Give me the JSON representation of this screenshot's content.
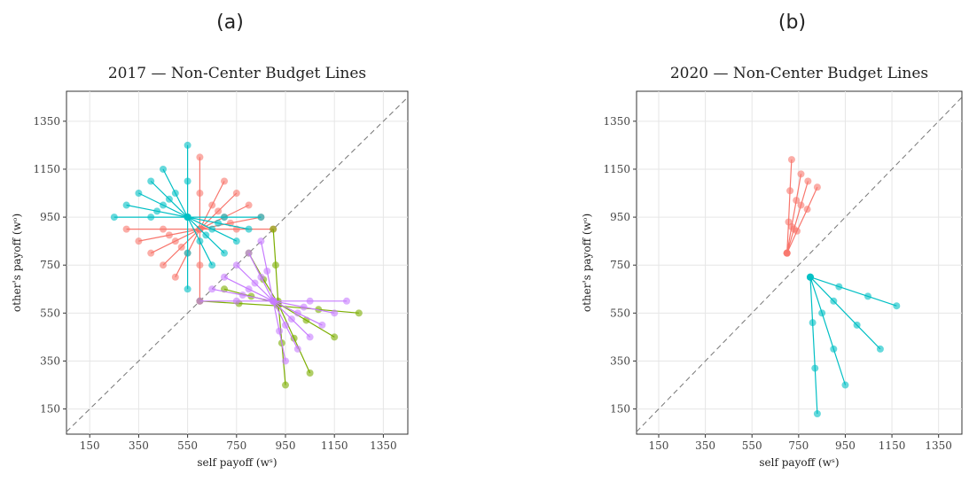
{
  "chart_data": [
    {
      "type": "line",
      "panel_label": "(a)",
      "title": "2017 — Non-Center Budget Lines",
      "x_label": "self payoff (wˢ)",
      "y_label": "other's payoff (wᵒ)",
      "xlim": [
        55,
        1450
      ],
      "ylim": [
        45,
        1475
      ],
      "xticks": [
        150,
        350,
        550,
        750,
        950,
        1150,
        1350
      ],
      "yticks": [
        150,
        350,
        550,
        750,
        950,
        1150,
        1350
      ],
      "grid": true,
      "diagonal": true,
      "series": [
        {
          "color": "#F8766D",
          "x": [
            300,
            450,
            600,
            750,
            900,
            null,
            350,
            475,
            600,
            725,
            850,
            null,
            400,
            500,
            600,
            700,
            800,
            null,
            500,
            550,
            600,
            650,
            700,
            null,
            600,
            600,
            600,
            600,
            600,
            null,
            450,
            525,
            600,
            675,
            750
          ],
          "y": [
            900,
            900,
            900,
            900,
            900,
            null,
            850,
            875,
            900,
            925,
            950,
            null,
            800,
            850,
            900,
            950,
            1000,
            null,
            700,
            800,
            900,
            1000,
            1100,
            null,
            600,
            750,
            900,
            1050,
            1200,
            null,
            750,
            825,
            900,
            975,
            1050
          ]
        },
        {
          "color": "#7CAE00",
          "x": [
            900,
            910,
            920,
            935,
            950,
            null,
            600,
            760,
            920,
            1085,
            1250,
            null,
            700,
            810,
            920,
            1035,
            1150,
            null,
            800,
            860,
            920,
            985,
            1050
          ],
          "y": [
            900,
            750,
            600,
            425,
            250,
            null,
            600,
            590,
            580,
            565,
            550,
            null,
            650,
            620,
            590,
            520,
            450,
            null,
            800,
            690,
            590,
            445,
            300
          ]
        },
        {
          "color": "#00BFC4",
          "x": [
            250,
            400,
            550,
            700,
            850,
            null,
            300,
            425,
            550,
            675,
            800,
            null,
            350,
            450,
            550,
            650,
            750,
            null,
            450,
            500,
            550,
            600,
            650,
            null,
            550,
            550,
            550,
            550,
            550,
            null,
            400,
            475,
            550,
            625,
            700
          ],
          "y": [
            950,
            950,
            950,
            950,
            950,
            null,
            1000,
            975,
            950,
            925,
            900,
            null,
            1050,
            1000,
            950,
            900,
            850,
            null,
            1150,
            1050,
            950,
            850,
            750,
            null,
            1250,
            1100,
            950,
            800,
            650,
            null,
            1100,
            1025,
            950,
            875,
            800
          ]
        },
        {
          "color": "#C77CFF",
          "x": [
            600,
            750,
            900,
            1050,
            1200,
            null,
            650,
            775,
            900,
            1025,
            1150,
            null,
            700,
            800,
            900,
            1000,
            1100,
            null,
            750,
            825,
            900,
            975,
            1050,
            null,
            850,
            875,
            900,
            925,
            950,
            null,
            800,
            850,
            900,
            950,
            1000
          ],
          "y": [
            600,
            600,
            600,
            600,
            600,
            null,
            650,
            625,
            600,
            575,
            550,
            null,
            700,
            650,
            600,
            550,
            500,
            null,
            750,
            675,
            600,
            525,
            450,
            null,
            850,
            725,
            600,
            475,
            350,
            null,
            800,
            700,
            600,
            500,
            400
          ]
        }
      ]
    },
    {
      "type": "line",
      "panel_label": "(b)",
      "title": "2020 — Non-Center Budget Lines",
      "x_label": "self payoff (wˢ)",
      "y_label": "other's payoff (wᵒ)",
      "xlim": [
        55,
        1450
      ],
      "ylim": [
        45,
        1475
      ],
      "xticks": [
        150,
        350,
        550,
        750,
        950,
        1150,
        1350
      ],
      "yticks": [
        150,
        350,
        550,
        750,
        950,
        1150,
        1350
      ],
      "grid": true,
      "diagonal": true,
      "series": [
        {
          "color": "#F8766D",
          "x": [
            700,
            707,
            713,
            720,
            null,
            700,
            720,
            740,
            760,
            null,
            700,
            730,
            760,
            790,
            null,
            700,
            743,
            787,
            830
          ],
          "y": [
            800,
            930,
            1060,
            1190,
            null,
            800,
            910,
            1020,
            1130,
            null,
            800,
            900,
            1000,
            1100,
            null,
            800,
            892,
            983,
            1075
          ]
        },
        {
          "color": "#00BFC4",
          "x": [
            800,
            923,
            1047,
            1170,
            null,
            800,
            900,
            1000,
            1100,
            null,
            800,
            850,
            900,
            950,
            null,
            800,
            810,
            820,
            830
          ],
          "y": [
            700,
            660,
            620,
            580,
            null,
            700,
            600,
            500,
            400,
            null,
            700,
            550,
            400,
            250,
            null,
            700,
            510,
            320,
            130
          ]
        }
      ]
    }
  ]
}
